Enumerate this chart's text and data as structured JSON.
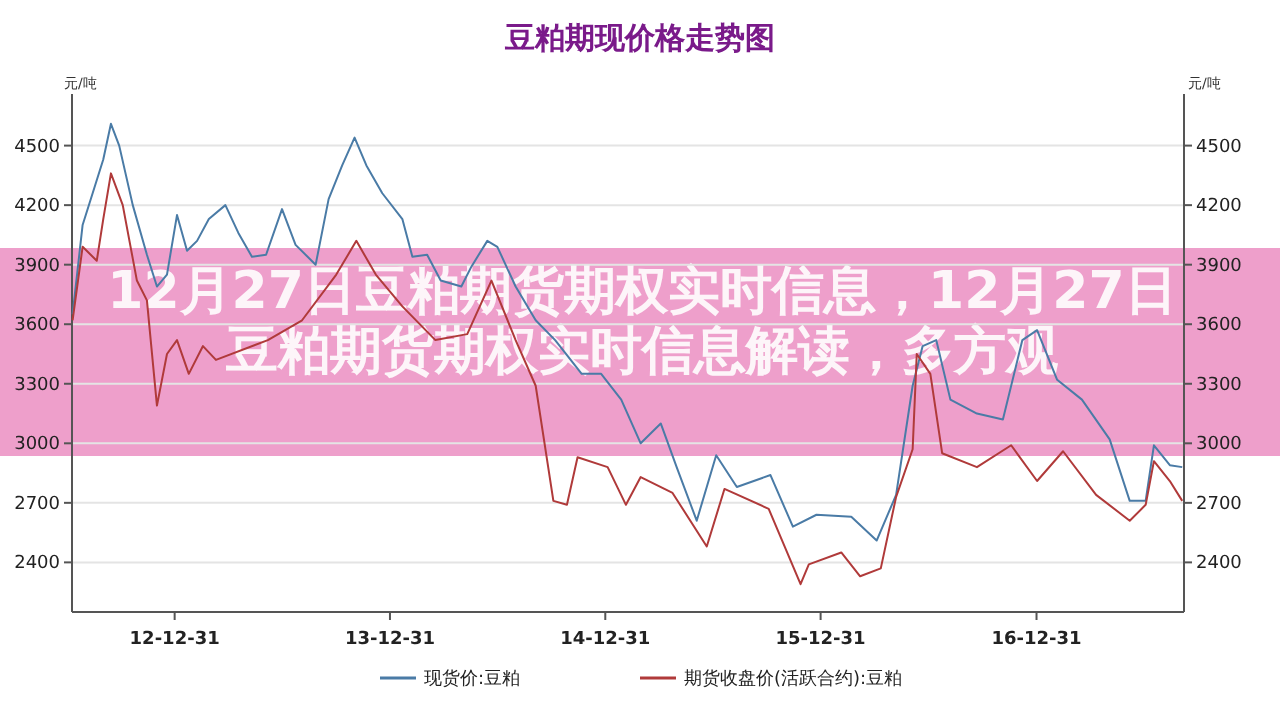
{
  "chart_data": {
    "type": "line",
    "title": "豆粕期现价格走势图",
    "ylabel": "元/吨",
    "y2label": "元/吨",
    "xlim": [
      "2012-07-10",
      "2017-09-07"
    ],
    "xticks": [
      {
        "value": "2012-12-31",
        "label": "12-12-31"
      },
      {
        "value": "2013-12-31",
        "label": "13-12-31"
      },
      {
        "value": "2014-12-31",
        "label": "14-12-31"
      },
      {
        "value": "2015-12-31",
        "label": "15-12-31"
      },
      {
        "value": "2016-12-31",
        "label": "16-12-31"
      }
    ],
    "ylim": [
      2150,
      4760
    ],
    "yticks": [
      2400,
      2700,
      3000,
      3300,
      3600,
      3900,
      4200,
      4500
    ],
    "y2lim": [
      2150,
      4760
    ],
    "y2ticks": [
      2400,
      2700,
      3000,
      3300,
      3600,
      3900,
      4200,
      4500
    ],
    "grid": "y",
    "legend": "bottom",
    "series": [
      {
        "name": "现货价:豆粕",
        "color": "#4a7ba6",
        "x": [
          "2012-07-11",
          "2012-07-28",
          "2012-08-14",
          "2012-09-01",
          "2012-09-14",
          "2012-09-28",
          "2012-10-21",
          "2012-11-14",
          "2012-12-01",
          "2012-12-18",
          "2013-01-04",
          "2013-01-21",
          "2013-02-07",
          "2013-02-27",
          "2013-03-27",
          "2013-04-18",
          "2013-05-11",
          "2013-06-04",
          "2013-07-01",
          "2013-07-24",
          "2013-08-27",
          "2013-09-18",
          "2013-10-11",
          "2013-11-01",
          "2013-11-21",
          "2013-12-18",
          "2014-01-21",
          "2014-02-07",
          "2014-03-04",
          "2014-03-27",
          "2014-05-01",
          "2014-05-18",
          "2014-06-14",
          "2014-07-01",
          "2014-08-01",
          "2014-09-04",
          "2014-10-07",
          "2014-11-21",
          "2014-12-24",
          "2015-01-27",
          "2015-03-01",
          "2015-04-04",
          "2015-05-01",
          "2015-06-04",
          "2015-07-07",
          "2015-08-11",
          "2015-10-07",
          "2015-11-14",
          "2015-12-24",
          "2016-02-21",
          "2016-04-04",
          "2016-05-07",
          "2016-06-04",
          "2016-06-21",
          "2016-07-14",
          "2016-08-07",
          "2016-09-21",
          "2016-11-04",
          "2016-12-07",
          "2017-01-01",
          "2017-02-04",
          "2017-03-18",
          "2017-05-04",
          "2017-06-07",
          "2017-07-04",
          "2017-07-18",
          "2017-08-14",
          "2017-09-04"
        ],
        "values": [
          3650,
          4100,
          4260,
          4430,
          4610,
          4500,
          4200,
          3950,
          3790,
          3850,
          4150,
          3970,
          4020,
          4130,
          4200,
          4060,
          3940,
          3950,
          4180,
          4000,
          3900,
          4230,
          4400,
          4540,
          4400,
          4260,
          4130,
          3940,
          3950,
          3820,
          3790,
          3890,
          4020,
          3990,
          3790,
          3620,
          3520,
          3350,
          3350,
          3220,
          3000,
          3100,
          2880,
          2610,
          2940,
          2780,
          2840,
          2580,
          2640,
          2630,
          2510,
          2740,
          3290,
          3490,
          3520,
          3220,
          3150,
          3120,
          3520,
          3570,
          3320,
          3220,
          3020,
          2710,
          2710,
          2990,
          2890,
          2880
        ]
      },
      {
        "name": "期货收盘价(活跃合约):豆粕",
        "color": "#b03a3a",
        "x": [
          "2012-07-11",
          "2012-07-28",
          "2012-08-21",
          "2012-09-01",
          "2012-09-14",
          "2012-10-04",
          "2012-10-28",
          "2012-11-14",
          "2012-12-01",
          "2012-12-18",
          "2013-01-04",
          "2013-01-24",
          "2013-02-17",
          "2013-03-11",
          "2013-06-07",
          "2013-08-04",
          "2013-10-01",
          "2013-11-04",
          "2013-12-07",
          "2014-01-21",
          "2014-03-18",
          "2014-05-11",
          "2014-06-21",
          "2014-08-01",
          "2014-09-04",
          "2014-10-04",
          "2014-10-27",
          "2014-11-14",
          "2015-01-04",
          "2015-02-04",
          "2015-03-01",
          "2015-04-24",
          "2015-06-21",
          "2015-07-21",
          "2015-10-04",
          "2015-11-27",
          "2015-12-11",
          "2016-02-04",
          "2016-03-07",
          "2016-04-11",
          "2016-05-07",
          "2016-06-04",
          "2016-06-11",
          "2016-07-04",
          "2016-07-24",
          "2016-09-21",
          "2016-11-18",
          "2017-01-01",
          "2017-02-14",
          "2017-04-11",
          "2017-06-07",
          "2017-07-04",
          "2017-07-18",
          "2017-08-14",
          "2017-09-04"
        ],
        "values": [
          3620,
          3990,
          3920,
          4130,
          4360,
          4200,
          3820,
          3720,
          3190,
          3450,
          3520,
          3350,
          3490,
          3420,
          3520,
          3620,
          3850,
          4020,
          3850,
          3690,
          3520,
          3550,
          3820,
          3520,
          3290,
          2710,
          2690,
          2930,
          2880,
          2690,
          2830,
          2750,
          2480,
          2770,
          2670,
          2290,
          2390,
          2450,
          2330,
          2370,
          2730,
          2970,
          3450,
          3350,
          2950,
          2880,
          2990,
          2810,
          2960,
          2740,
          2610,
          2690,
          2910,
          2810,
          2710
        ]
      }
    ],
    "annotations": [
      "12月27日豆粕期货期权实时信息，12月27日豆粕期货期权实时信息解读，多方观"
    ]
  }
}
